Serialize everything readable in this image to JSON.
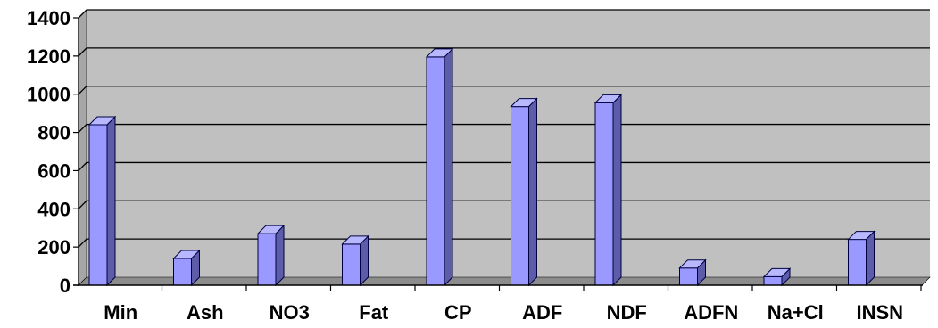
{
  "chart_data": {
    "type": "bar",
    "title": "",
    "xlabel": "",
    "ylabel": "",
    "categories": [
      "Min",
      "Ash",
      "NO3",
      "Fat",
      "CP",
      "ADF",
      "NDF",
      "ADFN",
      "Na+Cl",
      "INSN"
    ],
    "values": [
      840,
      140,
      270,
      215,
      1195,
      935,
      955,
      90,
      45,
      240
    ],
    "ylim": [
      0,
      1400
    ],
    "yticks": [
      "0",
      "200",
      "400",
      "600",
      "800",
      "1000",
      "1200",
      "1400"
    ],
    "grid": true,
    "legend": "none",
    "style": "3d-column",
    "colors": {
      "bar_front": "#9999ff",
      "bar_side": "#5c5ca8",
      "bar_top": "#b8b8ff",
      "bar_edge": "#000040",
      "plot_back": "#c0c0c0",
      "plot_floor": "#8c8c8c",
      "plot_left_wall": "#a6a6a6",
      "gridline": "#000000"
    }
  }
}
